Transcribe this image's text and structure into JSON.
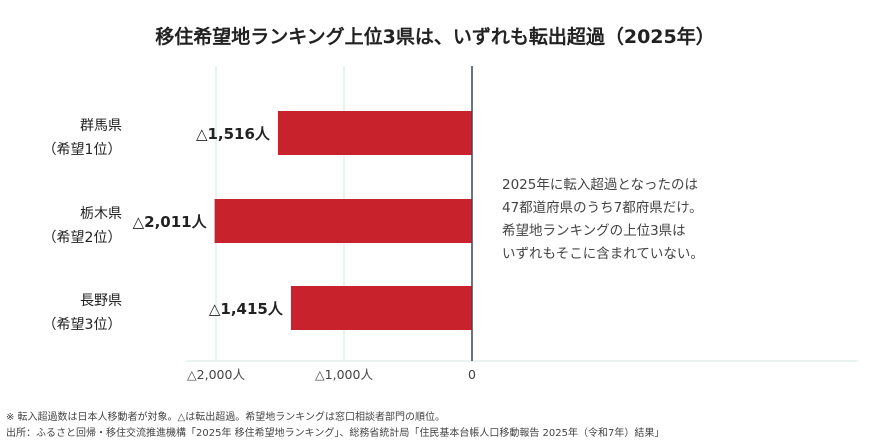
{
  "title": "移住希望地ランキング上位3県は、いずれも転出超過（2025年）",
  "annotation": [
    "2025年に転入超過となったのは",
    "47都道府県のうち7都府県だけ。",
    "希望地ランキングの上位3県は",
    "いずれもそこに含まれていない。"
  ],
  "footnotes": {
    "note": "※ 転入超過数は日本人移動者が対象。△は転出超過。希望地ランキングは窓口相談者部門の順位。",
    "source": "出所：ふるさと回帰・移住交流推進機構「2025年 移住希望地ランキング」、総務省統計局「住民基本台帳人口移動報告 2025年（令和7年）結果」"
  },
  "colors": {
    "bar": "#c8232c",
    "grid": "#d6e4e4",
    "zero_line": "#3a4756",
    "text": "#222222"
  },
  "chart_data": {
    "type": "bar",
    "orientation": "horizontal",
    "categories": [
      {
        "name": "群馬県",
        "rank": "（希望1位）"
      },
      {
        "name": "栃木県",
        "rank": "（希望2位）"
      },
      {
        "name": "長野県",
        "rank": "（希望3位）"
      }
    ],
    "values": [
      -1516,
      -2011,
      -1415
    ],
    "value_labels": [
      "△1,516人",
      "△2,011人",
      "△1,415人"
    ],
    "xlim": [
      -2000,
      0
    ],
    "xticks": [
      -2000,
      -1000,
      0
    ],
    "xtick_labels": [
      "△2,000人",
      "△1,000人",
      "0"
    ],
    "grid": true
  }
}
